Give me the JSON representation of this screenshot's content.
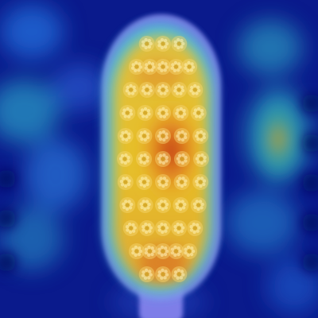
{
  "image": {
    "subject": "toothbrush-head",
    "overlay": "heatmap",
    "colors": {
      "background_deep": "#0a1a8c",
      "background_mid": "#1e4fd0",
      "cyan": "#35c0d8",
      "teal": "#3aa89a",
      "yellow": "#f0c020",
      "orange": "#e07820",
      "red": "#c03010",
      "lavender": "#8a88f0"
    },
    "bristle_grid": {
      "rows": 11,
      "columns": 5
    }
  }
}
